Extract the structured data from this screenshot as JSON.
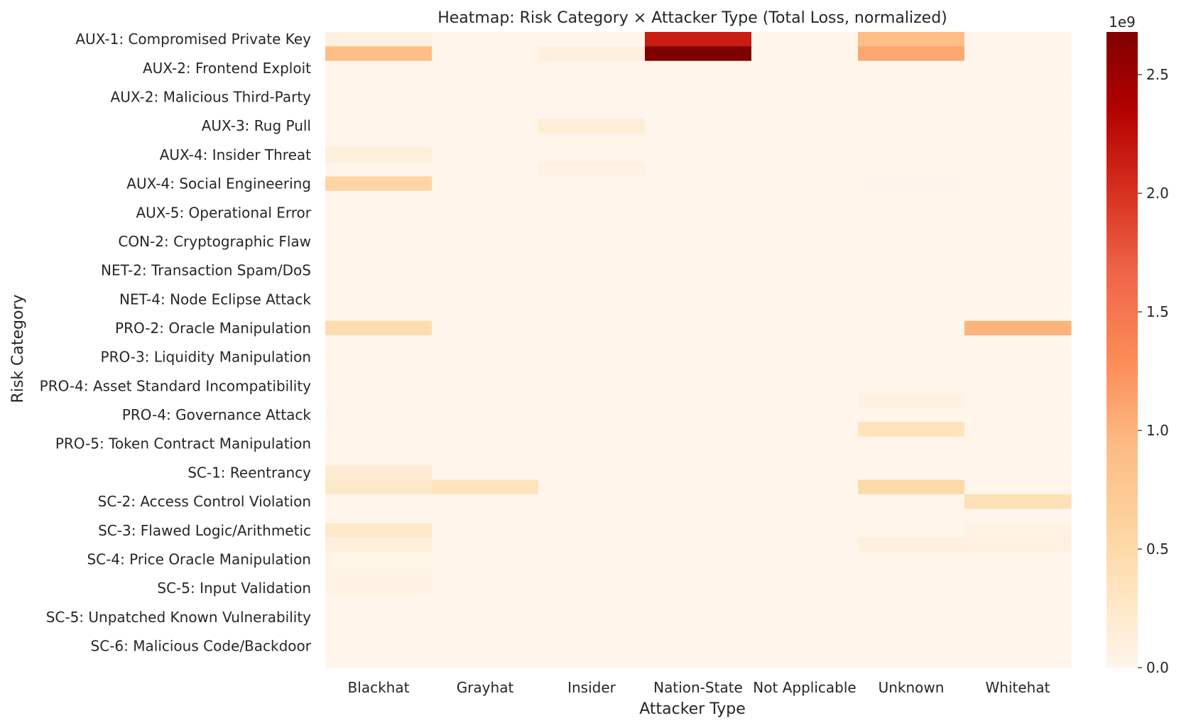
{
  "chart_data": {
    "type": "heatmap",
    "title": "Heatmap: Risk Category × Attacker Type (Total Loss, normalized)",
    "xlabel": "Attacker Type",
    "ylabel": "Risk Category",
    "columns": [
      "Blackhat",
      "Grayhat",
      "Insider",
      "Nation-State",
      "Not Applicable",
      "Unknown",
      "Whitehat"
    ],
    "rows": [
      "AUX-1: Compromised Private Key",
      "",
      "AUX-2: Frontend Exploit",
      "",
      "AUX-2: Malicious Third-Party",
      "",
      "AUX-3: Rug Pull",
      "",
      "AUX-4: Insider Threat",
      "",
      "AUX-4: Social Engineering",
      "",
      "AUX-5: Operational Error",
      "",
      "CON-2: Cryptographic Flaw",
      "",
      "NET-2: Transaction Spam/DoS",
      "",
      "NET-4: Node Eclipse Attack",
      "",
      "PRO-2: Oracle Manipulation",
      "",
      "PRO-3: Liquidity Manipulation",
      "",
      "PRO-4: Asset Standard Incompatibility",
      "",
      "PRO-4: Governance Attack",
      "",
      "PRO-5: Token Contract Manipulation",
      "",
      "SC-1: Reentrancy",
      "",
      "SC-2: Access Control Violation",
      "",
      "SC-3: Flawed Logic/Arithmetic",
      "",
      "SC-4: Price Oracle Manipulation",
      "",
      "SC-5: Input Validation",
      "",
      "SC-5: Unpatched Known Vulnerability",
      "",
      "SC-6: Malicious Code/Backdoor",
      ""
    ],
    "values": [
      [
        0.08,
        0,
        0,
        2.15,
        0,
        0.9,
        0
      ],
      [
        0.9,
        0,
        0.1,
        2.68,
        0,
        1.1,
        0
      ],
      [
        0.02,
        0,
        0,
        0,
        0,
        0,
        0
      ],
      [
        0,
        0,
        0,
        0.03,
        0,
        0,
        0
      ],
      [
        0,
        0,
        0,
        0,
        0,
        0,
        0
      ],
      [
        0,
        0,
        0,
        0,
        0,
        0,
        0
      ],
      [
        0,
        0,
        0.15,
        0,
        0,
        0,
        0
      ],
      [
        0,
        0,
        0.02,
        0,
        0,
        0,
        0
      ],
      [
        0.12,
        0,
        0,
        0,
        0,
        0,
        0
      ],
      [
        0,
        0,
        0.06,
        0,
        0,
        0,
        0
      ],
      [
        0.55,
        0,
        0,
        0,
        0,
        0.03,
        0
      ],
      [
        0,
        0,
        0,
        0,
        0,
        0.02,
        0
      ],
      [
        0,
        0,
        0,
        0,
        0,
        0,
        0
      ],
      [
        0.02,
        0,
        0,
        0,
        0,
        0,
        0
      ],
      [
        0,
        0,
        0,
        0,
        0,
        0,
        0
      ],
      [
        0,
        0,
        0,
        0,
        0,
        0,
        0
      ],
      [
        0,
        0,
        0,
        0,
        0,
        0,
        0
      ],
      [
        0,
        0,
        0,
        0,
        0,
        0,
        0
      ],
      [
        0,
        0,
        0,
        0,
        0,
        0,
        0
      ],
      [
        0,
        0,
        0,
        0,
        0,
        0,
        0
      ],
      [
        0.45,
        0,
        0,
        0,
        0,
        0,
        1.0
      ],
      [
        0.01,
        0,
        0,
        0,
        0,
        0,
        0
      ],
      [
        0.02,
        0.01,
        0,
        0,
        0,
        0,
        0.01
      ],
      [
        0.01,
        0,
        0,
        0,
        0,
        0,
        0
      ],
      [
        0.02,
        0,
        0,
        0,
        0,
        0,
        0
      ],
      [
        0,
        0,
        0,
        0,
        0,
        0.06,
        0
      ],
      [
        0.03,
        0,
        0,
        0,
        0,
        0,
        0
      ],
      [
        0,
        0,
        0,
        0,
        0,
        0.35,
        0
      ],
      [
        0.01,
        0,
        0,
        0,
        0,
        0,
        0
      ],
      [
        0,
        0,
        0,
        0,
        0,
        0,
        0
      ],
      [
        0.2,
        0,
        0,
        0,
        0,
        0,
        0.01
      ],
      [
        0.25,
        0.35,
        0,
        0,
        0,
        0.5,
        0
      ],
      [
        0,
        0,
        0,
        0,
        0,
        0,
        0.4
      ],
      [
        0.01,
        0.02,
        0,
        0,
        0,
        0,
        0.01
      ],
      [
        0.25,
        0,
        0,
        0,
        0,
        0,
        0.05
      ],
      [
        0.12,
        0,
        0,
        0,
        0,
        0.1,
        0.08
      ],
      [
        0.02,
        0,
        0,
        0,
        0,
        0,
        0
      ],
      [
        0.04,
        0,
        0,
        0,
        0,
        0,
        0
      ],
      [
        0.05,
        0,
        0,
        0,
        0,
        0,
        0
      ],
      [
        0,
        0,
        0,
        0,
        0,
        0,
        0
      ],
      [
        0,
        0,
        0,
        0,
        0,
        0,
        0
      ],
      [
        0,
        0,
        0,
        0,
        0,
        0,
        0
      ],
      [
        0,
        0,
        0,
        0,
        0,
        0,
        0
      ],
      [
        0,
        0,
        0,
        0,
        0,
        0,
        0
      ]
    ],
    "value_scale": 1000000000,
    "colorbar": {
      "range": [
        0,
        2.68
      ],
      "ticks": [
        "0.0",
        "0.5",
        "1.0",
        "1.5",
        "2.0",
        "2.5"
      ],
      "tick_values": [
        0,
        0.5,
        1.0,
        1.5,
        2.0,
        2.5
      ],
      "offset_label": "1e9",
      "colormap": "OrRd"
    }
  }
}
